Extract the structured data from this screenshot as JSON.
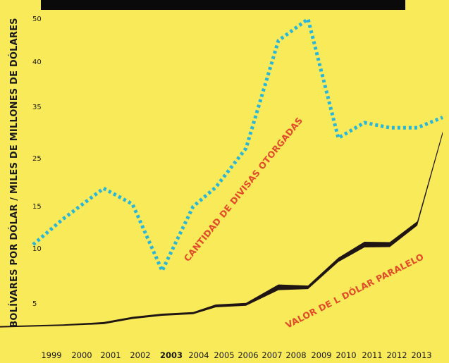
{
  "chart_data": {
    "type": "line",
    "title": "",
    "xlabel": "",
    "ylabel": "BOLÍVARES POR DÓLAR / MILES DE MILLONES DE DÓLARES",
    "x": [
      "1999",
      "2000",
      "2001",
      "2002",
      "2003",
      "2004",
      "2005",
      "2006",
      "2007",
      "2008",
      "2009",
      "2010",
      "2011",
      "2012",
      "2013"
    ],
    "highlight_x": "2003",
    "yticks": [
      "5",
      "10",
      "15",
      "25",
      "35",
      "40",
      "50"
    ],
    "series": [
      {
        "name": "CANTIDAD DE DIVISAS OTORGADAS",
        "style": "dotted",
        "color": "#29b6d8",
        "values": [
          10.5,
          13.5,
          18.8,
          15.5,
          8.0,
          15.0,
          19.0,
          27.0,
          45.0,
          50.0,
          29.0,
          32.0,
          31.0,
          31.0,
          33.0
        ]
      },
      {
        "name": "VALOR DE L DÓLAR PARALELO",
        "style": "solid-thick",
        "color": "#1f1513",
        "values": [
          0.6,
          0.9,
          1.3,
          2.3,
          2.9,
          3.2,
          4.6,
          4.9,
          6.5,
          6.5,
          9.0,
          10.5,
          10.5,
          13.0,
          30.0
        ]
      }
    ],
    "grid": false,
    "legend": "inline labels"
  },
  "colors": {
    "background": "#f9ea5a",
    "top_bar": "#0a0a0a",
    "label_text": "#e24a2a"
  }
}
